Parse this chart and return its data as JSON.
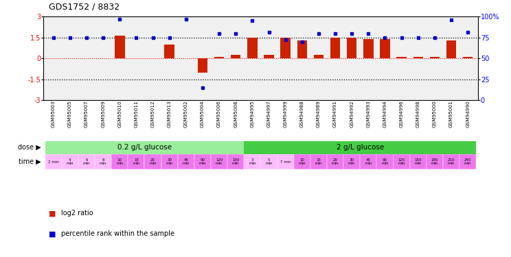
{
  "title": "GDS1752 / 8832",
  "samples": [
    "GSM95003",
    "GSM95005",
    "GSM95007",
    "GSM95009",
    "GSM95010",
    "GSM95011",
    "GSM95012",
    "GSM95013",
    "GSM95002",
    "GSM95004",
    "GSM95006",
    "GSM95008",
    "GSM94995",
    "GSM94997",
    "GSM94999",
    "GSM94988",
    "GSM94989",
    "GSM94991",
    "GSM94992",
    "GSM94993",
    "GSM94994",
    "GSM94996",
    "GSM94998",
    "GSM95000",
    "GSM95001",
    "GSM94990"
  ],
  "log2_ratio": [
    0.03,
    0.0,
    0.0,
    0.0,
    1.62,
    0.0,
    0.0,
    1.0,
    0.0,
    -1.0,
    0.12,
    0.27,
    1.5,
    0.27,
    1.5,
    1.3,
    0.27,
    1.5,
    1.5,
    1.4,
    1.4,
    0.12,
    0.12,
    0.1,
    1.3,
    0.12
  ],
  "percentile": [
    75,
    75,
    75,
    75,
    97,
    75,
    75,
    75,
    97,
    15,
    80,
    80,
    95,
    81,
    72,
    70,
    80,
    80,
    80,
    80,
    75,
    75,
    75,
    75,
    96,
    81
  ],
  "dose1_label": "0.2 g/L glucose",
  "dose2_label": "2 g/L glucose",
  "dose1_color": "#99EE99",
  "dose2_color": "#44CC44",
  "time_labels": [
    "2 min",
    "4\nmin",
    "6\nmin",
    "8\nmin",
    "10\nmin",
    "15\nmin",
    "20\nmin",
    "30\nmin",
    "45\nmin",
    "90\nmin",
    "120\nmin",
    "150\nmin",
    "3\nmin",
    "5\nmin",
    "7 min",
    "10\nmin",
    "15\nmin",
    "20\nmin",
    "30\nmin",
    "45\nmin",
    "90\nmin",
    "120\nmin",
    "150\nmin",
    "180\nmin",
    "210\nmin",
    "240\nmin"
  ],
  "time_colors": [
    "#ffbbff",
    "#ffbbff",
    "#ffbbff",
    "#ffbbff",
    "#ee77ee",
    "#ee77ee",
    "#ee77ee",
    "#ee77ee",
    "#ee77ee",
    "#ee77ee",
    "#ee77ee",
    "#ee77ee",
    "#ffbbff",
    "#ffbbff",
    "#ffbbff",
    "#ee77ee",
    "#ee77ee",
    "#ee77ee",
    "#ee77ee",
    "#ee77ee",
    "#ee77ee",
    "#ee77ee",
    "#ee77ee",
    "#ee77ee",
    "#ee77ee",
    "#ee77ee"
  ],
  "bar_color": "#cc2200",
  "dot_color": "#0000cc",
  "bg_color": "#f0f0f0",
  "ylim_left": [
    -3,
    3
  ],
  "ylim_right": [
    0,
    100
  ],
  "yticks_left": [
    -3,
    -1.5,
    0,
    1.5,
    3
  ],
  "yticks_right": [
    0,
    25,
    50,
    75,
    100
  ],
  "n_dose1": 12,
  "n_dose2": 14
}
